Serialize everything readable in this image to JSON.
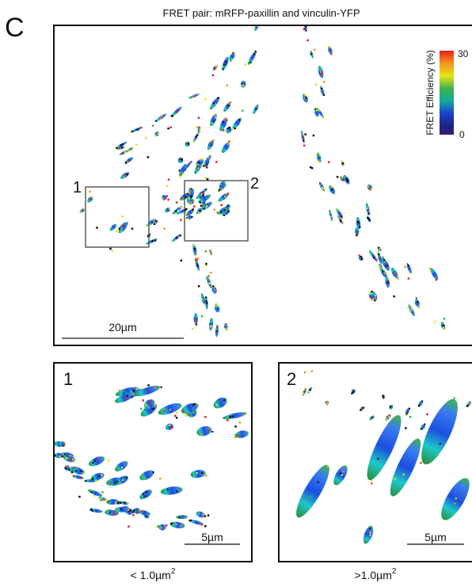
{
  "panel_letter": "C",
  "title": "FRET pair: mRFP-paxillin and vinculin-YFP",
  "colorbar": {
    "label": "FRET Efficiency (%)",
    "max_label": "30",
    "min_label": "0"
  },
  "main_image": {
    "box_labels": [
      "1",
      "2"
    ],
    "scale_bar": "20µm"
  },
  "insets": [
    {
      "label": "1",
      "scale_bar": "5µm",
      "caption": "< 1.0µm",
      "caption_exponent": "2"
    },
    {
      "label": "2",
      "scale_bar": "5µm",
      "caption": ">1.0µm",
      "caption_exponent": "2"
    }
  ]
}
